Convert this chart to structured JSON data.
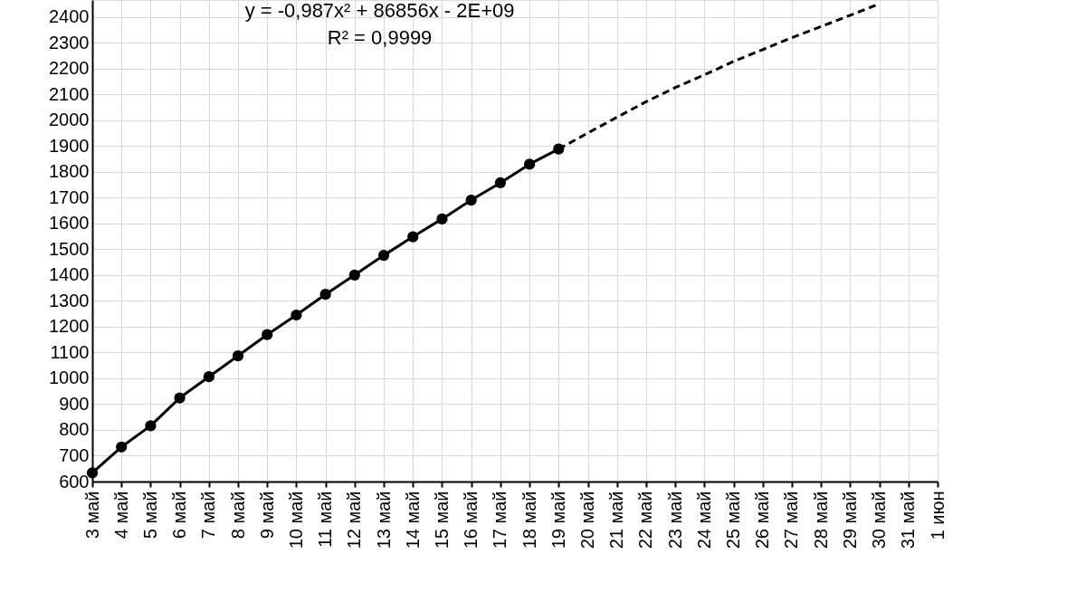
{
  "chart_data": {
    "type": "line",
    "categories": [
      "3 май",
      "4 май",
      "5 май",
      "6 май",
      "7 май",
      "8 май",
      "9 май",
      "10 май",
      "11 май",
      "12 май",
      "13 май",
      "14 май",
      "15 май",
      "16 май",
      "17 май",
      "18 май",
      "19 май",
      "20 май",
      "21 май",
      "22 май",
      "23 май",
      "24 май",
      "25 май",
      "26 май",
      "27 май",
      "28 май",
      "29 май",
      "30 май",
      "31 май",
      "1 июн"
    ],
    "series": [
      {
        "color": "#000000",
        "marker": "circle",
        "line_style": "solid",
        "values": [
          634,
          734,
          816,
          924,
          1006,
          1087,
          1169,
          1245,
          1325,
          1400,
          1476,
          1548,
          1617,
          1690,
          1757,
          1829,
          1888,
          null,
          null,
          null,
          null,
          null,
          null,
          null,
          null,
          null,
          null,
          null,
          null,
          null
        ]
      },
      {
        "color": "#000000",
        "marker": "none",
        "line_style": "dashed",
        "values": [
          null,
          null,
          null,
          null,
          null,
          null,
          null,
          null,
          null,
          null,
          null,
          null,
          null,
          null,
          null,
          null,
          1888,
          1950,
          2011,
          2071,
          2126,
          2175,
          2227,
          2273,
          2319,
          2362,
          2406,
          2450,
          null,
          null
        ]
      }
    ],
    "ylim": [
      600,
      2465
    ],
    "yticks": [
      600,
      700,
      800,
      900,
      1000,
      1100,
      1200,
      1300,
      1400,
      1500,
      1600,
      1700,
      1800,
      1900,
      2000,
      2100,
      2200,
      2300,
      2400
    ],
    "grid": true,
    "annotations": [
      "y = -0,987x² + 86856x - 2E+09",
      "R² = 0,9999"
    ]
  }
}
